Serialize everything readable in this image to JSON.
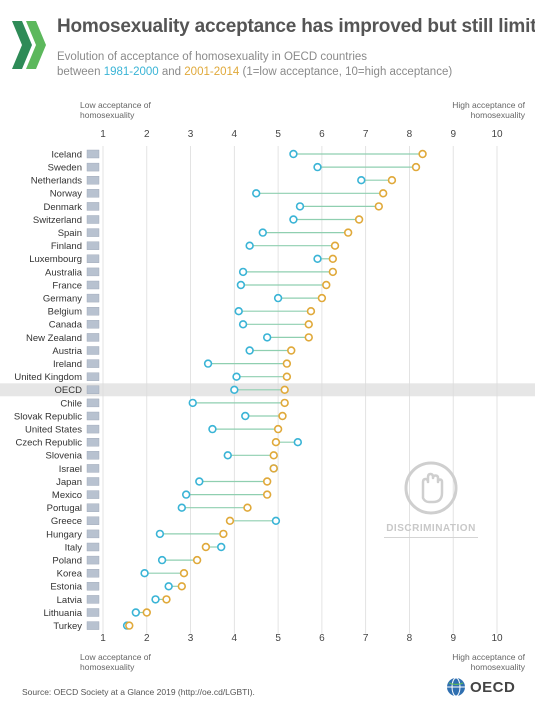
{
  "header": {
    "title": "Homosexuality acceptance has improved but still limited",
    "subtitle_line1": "Evolution of acceptance of homosexuality in OECD countries",
    "subtitle_between": "between",
    "subtitle_period1": "1981-2000",
    "subtitle_and": "and",
    "subtitle_period2": "2001-2014",
    "subtitle_scale": "(1=low acceptance, 10=high acceptance)"
  },
  "axis_captions": {
    "low": "Low acceptance of homosexuality",
    "high": "High acceptance of homosexuality"
  },
  "watermark": "DISCRIMINATION",
  "footer": {
    "source": "Source: OECD Society at a Glance 2019 (http://oe.cd/LGBTI).",
    "logo_text": "OECD"
  },
  "colors": {
    "period1": "#3ab4d6",
    "period2": "#e0a93a",
    "connector": "#8fcfb0",
    "highlight_row": "#e6e6e6"
  },
  "chart_data": {
    "type": "dumbbell",
    "xlim": [
      1,
      10
    ],
    "x_ticks": [
      1,
      2,
      3,
      4,
      5,
      6,
      7,
      8,
      9,
      10
    ],
    "grid": true,
    "series": [
      {
        "name": "1981-2000",
        "color": "#3ab4d6"
      },
      {
        "name": "2001-2014",
        "color": "#e0a93a"
      }
    ],
    "rows": [
      {
        "country": "Iceland",
        "flag": "iceland-flag",
        "v1": 5.35,
        "v2": 8.3
      },
      {
        "country": "Sweden",
        "flag": "sweden-flag",
        "v1": 5.9,
        "v2": 8.15
      },
      {
        "country": "Netherlands",
        "flag": "netherlands-flag",
        "v1": 6.9,
        "v2": 7.6
      },
      {
        "country": "Norway",
        "flag": "norway-flag",
        "v1": 4.5,
        "v2": 7.4
      },
      {
        "country": "Denmark",
        "flag": "denmark-flag",
        "v1": 5.5,
        "v2": 7.3
      },
      {
        "country": "Switzerland",
        "flag": "switzerland-flag",
        "v1": 5.35,
        "v2": 6.85
      },
      {
        "country": "Spain",
        "flag": "spain-flag",
        "v1": 4.65,
        "v2": 6.6
      },
      {
        "country": "Finland",
        "flag": "finland-flag",
        "v1": 4.35,
        "v2": 6.3
      },
      {
        "country": "Luxembourg",
        "flag": "luxembourg-flag",
        "v1": 5.9,
        "v2": 6.25
      },
      {
        "country": "Australia",
        "flag": "australia-flag",
        "v1": 4.2,
        "v2": 6.25
      },
      {
        "country": "France",
        "flag": "france-flag",
        "v1": 4.15,
        "v2": 6.1
      },
      {
        "country": "Germany",
        "flag": "germany-flag",
        "v1": 5.0,
        "v2": 6.0
      },
      {
        "country": "Belgium",
        "flag": "belgium-flag",
        "v1": 4.1,
        "v2": 5.75
      },
      {
        "country": "Canada",
        "flag": "canada-flag",
        "v1": 4.2,
        "v2": 5.7
      },
      {
        "country": "New Zealand",
        "flag": "new-zealand-flag",
        "v1": 4.75,
        "v2": 5.7
      },
      {
        "country": "Austria",
        "flag": "austria-flag",
        "v1": 4.35,
        "v2": 5.3
      },
      {
        "country": "Ireland",
        "flag": "ireland-flag",
        "v1": 3.4,
        "v2": 5.2
      },
      {
        "country": "United Kingdom",
        "flag": "united-kingdom-flag",
        "v1": 4.05,
        "v2": 5.2
      },
      {
        "country": "OECD",
        "flag": "oecd-flag",
        "v1": 4.0,
        "v2": 5.15,
        "highlight": true
      },
      {
        "country": "Chile",
        "flag": "chile-flag",
        "v1": 3.05,
        "v2": 5.15
      },
      {
        "country": "Slovak Republic",
        "flag": "slovak-republic-flag",
        "v1": 4.25,
        "v2": 5.1
      },
      {
        "country": "United States",
        "flag": "united-states-flag",
        "v1": 3.5,
        "v2": 5.0
      },
      {
        "country": "Czech Republic",
        "flag": "czech-republic-flag",
        "v1": 5.45,
        "v2": 4.95
      },
      {
        "country": "Slovenia",
        "flag": "slovenia-flag",
        "v1": 3.85,
        "v2": 4.9
      },
      {
        "country": "Israel",
        "flag": "israel-flag",
        "v1": 4.9,
        "v2": 4.9
      },
      {
        "country": "Japan",
        "flag": "japan-flag",
        "v1": 3.2,
        "v2": 4.75
      },
      {
        "country": "Mexico",
        "flag": "mexico-flag",
        "v1": 2.9,
        "v2": 4.75
      },
      {
        "country": "Portugal",
        "flag": "portugal-flag",
        "v1": 2.8,
        "v2": 4.3
      },
      {
        "country": "Greece",
        "flag": "greece-flag",
        "v1": 4.95,
        "v2": 3.9
      },
      {
        "country": "Hungary",
        "flag": "hungary-flag",
        "v1": 2.3,
        "v2": 3.75
      },
      {
        "country": "Italy",
        "flag": "italy-flag",
        "v1": 3.7,
        "v2": 3.35
      },
      {
        "country": "Poland",
        "flag": "poland-flag",
        "v1": 2.35,
        "v2": 3.15
      },
      {
        "country": "Korea",
        "flag": "korea-flag",
        "v1": 1.95,
        "v2": 2.85
      },
      {
        "country": "Estonia",
        "flag": "estonia-flag",
        "v1": 2.5,
        "v2": 2.8
      },
      {
        "country": "Latvia",
        "flag": "latvia-flag",
        "v1": 2.2,
        "v2": 2.45
      },
      {
        "country": "Lithuania",
        "flag": "lithuania-flag",
        "v1": 1.75,
        "v2": 2.0
      },
      {
        "country": "Turkey",
        "flag": "turkey-flag",
        "v1": 1.55,
        "v2": 1.6
      }
    ]
  }
}
